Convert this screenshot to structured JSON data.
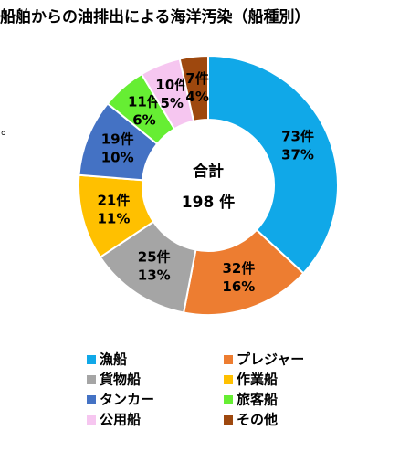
{
  "chart_data": {
    "type": "donut",
    "title": "船舶からの油排出による海洋汚染（船種別）",
    "categories": [
      "漁船",
      "プレジャー",
      "貨物船",
      "作業船",
      "タンカー",
      "旅客船",
      "公用船",
      "その他"
    ],
    "values": [
      73,
      32,
      25,
      21,
      19,
      11,
      10,
      7
    ],
    "value_labels": [
      "73件",
      "32件",
      "25件",
      "21件",
      "19件",
      "11件",
      "10件",
      "7件"
    ],
    "percent_labels": [
      "37%",
      "16%",
      "13%",
      "11%",
      "10%",
      "6%",
      "5%",
      "4%"
    ],
    "colors": [
      "#10a8e8",
      "#ed7d31",
      "#a5a5a5",
      "#ffc000",
      "#4472c4",
      "#66ee33",
      "#f6c6f0",
      "#9e480e"
    ],
    "center_text": [
      "合計",
      "198 件"
    ],
    "note": "。"
  }
}
